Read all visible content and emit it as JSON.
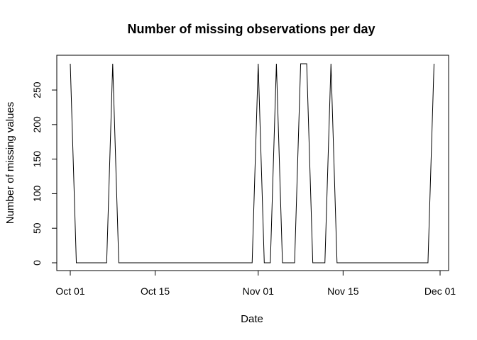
{
  "chart_data": {
    "type": "line",
    "title": "Number of missing observations per day",
    "xlabel": "Date",
    "ylabel": "Number of missing values",
    "x_tick_labels": [
      {
        "date": "2012-10-01",
        "label": "Oct 01"
      },
      {
        "date": "2012-10-15",
        "label": "Oct 15"
      },
      {
        "date": "2012-11-01",
        "label": "Nov 01"
      },
      {
        "date": "2012-11-15",
        "label": "Nov 15"
      },
      {
        "date": "2012-12-01",
        "label": "Dec 01"
      }
    ],
    "y_ticks": [
      0,
      50,
      100,
      150,
      200,
      250
    ],
    "xlim": [
      "2012-09-30",
      "2012-12-01"
    ],
    "ylim": [
      0,
      288
    ],
    "grid": false,
    "series_color": "#000000",
    "series": [
      {
        "x": [
          "2012-10-01",
          "2012-10-02",
          "2012-10-03",
          "2012-10-04",
          "2012-10-05",
          "2012-10-06",
          "2012-10-07",
          "2012-10-08",
          "2012-10-09",
          "2012-10-10",
          "2012-10-11",
          "2012-10-12",
          "2012-10-13",
          "2012-10-14",
          "2012-10-15",
          "2012-10-16",
          "2012-10-17",
          "2012-10-18",
          "2012-10-19",
          "2012-10-20",
          "2012-10-21",
          "2012-10-22",
          "2012-10-23",
          "2012-10-24",
          "2012-10-25",
          "2012-10-26",
          "2012-10-27",
          "2012-10-28",
          "2012-10-29",
          "2012-10-30",
          "2012-10-31",
          "2012-11-01",
          "2012-11-02",
          "2012-11-03",
          "2012-11-04",
          "2012-11-05",
          "2012-11-06",
          "2012-11-07",
          "2012-11-08",
          "2012-11-09",
          "2012-11-10",
          "2012-11-11",
          "2012-11-12",
          "2012-11-13",
          "2012-11-14",
          "2012-11-15",
          "2012-11-16",
          "2012-11-17",
          "2012-11-18",
          "2012-11-19",
          "2012-11-20",
          "2012-11-21",
          "2012-11-22",
          "2012-11-23",
          "2012-11-24",
          "2012-11-25",
          "2012-11-26",
          "2012-11-27",
          "2012-11-28",
          "2012-11-29",
          "2012-11-30"
        ],
        "y": [
          288,
          0,
          0,
          0,
          0,
          0,
          0,
          288,
          0,
          0,
          0,
          0,
          0,
          0,
          0,
          0,
          0,
          0,
          0,
          0,
          0,
          0,
          0,
          0,
          0,
          0,
          0,
          0,
          0,
          0,
          0,
          288,
          0,
          0,
          288,
          0,
          0,
          0,
          288,
          288,
          0,
          0,
          0,
          288,
          0,
          0,
          0,
          0,
          0,
          0,
          0,
          0,
          0,
          0,
          0,
          0,
          0,
          0,
          0,
          0,
          288
        ]
      }
    ]
  }
}
